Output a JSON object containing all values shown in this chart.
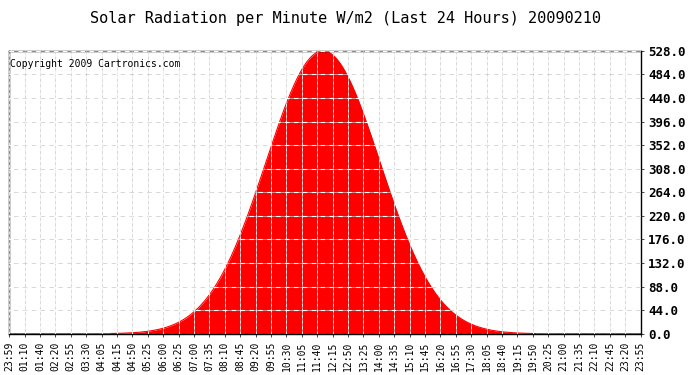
{
  "title": "Solar Radiation per Minute W/m2 (Last 24 Hours) 20090210",
  "copyright": "Copyright 2009 Cartronics.com",
  "ylim": [
    0.0,
    528.0
  ],
  "yticks": [
    0.0,
    44.0,
    88.0,
    132.0,
    176.0,
    220.0,
    264.0,
    308.0,
    352.0,
    396.0,
    440.0,
    484.0,
    528.0
  ],
  "x_labels": [
    "23:59",
    "01:10",
    "01:40",
    "02:20",
    "02:55",
    "03:30",
    "04:05",
    "04:15",
    "04:50",
    "05:25",
    "06:00",
    "06:25",
    "07:00",
    "07:35",
    "08:10",
    "08:45",
    "09:20",
    "09:55",
    "10:30",
    "11:05",
    "11:40",
    "12:15",
    "12:50",
    "13:25",
    "14:00",
    "14:35",
    "15:10",
    "15:45",
    "16:20",
    "16:55",
    "17:30",
    "18:05",
    "18:40",
    "19:15",
    "19:50",
    "20:25",
    "21:00",
    "21:35",
    "22:10",
    "22:45",
    "23:20",
    "23:55"
  ],
  "peak_value": 528.0,
  "peak_idx": 715,
  "sigma": 130,
  "fill_color": "#FF0000",
  "line_color": "#FF0000",
  "bg_color": "#FFFFFF",
  "grid_major_color": "#C8C8C8",
  "grid_white_dash_color": "#FFFFFF",
  "baseline_dashed_color": "#FF0000",
  "title_fontsize": 11,
  "copyright_fontsize": 7,
  "tick_fontsize": 7,
  "ytick_fontsize": 9
}
